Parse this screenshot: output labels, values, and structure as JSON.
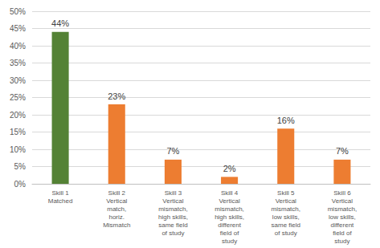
{
  "chart_data": {
    "type": "bar",
    "categories": [
      "Skill 1\nMatched",
      "Skill 2\nVertical\nmatch,\nhoriz.\nMismatch",
      "Skill 3\nVertical\nmismatch,\nhigh skills,\nsame field\nof study",
      "Skill 4\nVertical\nmismatch,\nhigh skills,\ndifferent\nfield of\nstudy",
      "Skill 5\nVertical\nmismatch,\nlow skills,\nsame field\nof study",
      "Skill 6\nVertical\nmismatch,\nlow skills,\ndifferent\nfield of\nstudy"
    ],
    "values": [
      44,
      23,
      7,
      2,
      16,
      7
    ],
    "value_labels": [
      "44%",
      "23%",
      "7%",
      "2%",
      "16%",
      "7%"
    ],
    "colors": [
      "#548235",
      "#ed7d31",
      "#ed7d31",
      "#ed7d31",
      "#ed7d31",
      "#ed7d31"
    ],
    "ylim": [
      0,
      50
    ],
    "yticks": [
      {
        "value": 0,
        "label": "0%"
      },
      {
        "value": 5,
        "label": "5%"
      },
      {
        "value": 10,
        "label": "10%"
      },
      {
        "value": 15,
        "label": "15%"
      },
      {
        "value": 20,
        "label": "20%"
      },
      {
        "value": 25,
        "label": "25%"
      },
      {
        "value": 30,
        "label": "30%"
      },
      {
        "value": 35,
        "label": "35%"
      },
      {
        "value": 40,
        "label": "40%"
      },
      {
        "value": 45,
        "label": "45%"
      },
      {
        "value": 50,
        "label": "50%"
      }
    ],
    "grid": true,
    "data_labels": true
  }
}
